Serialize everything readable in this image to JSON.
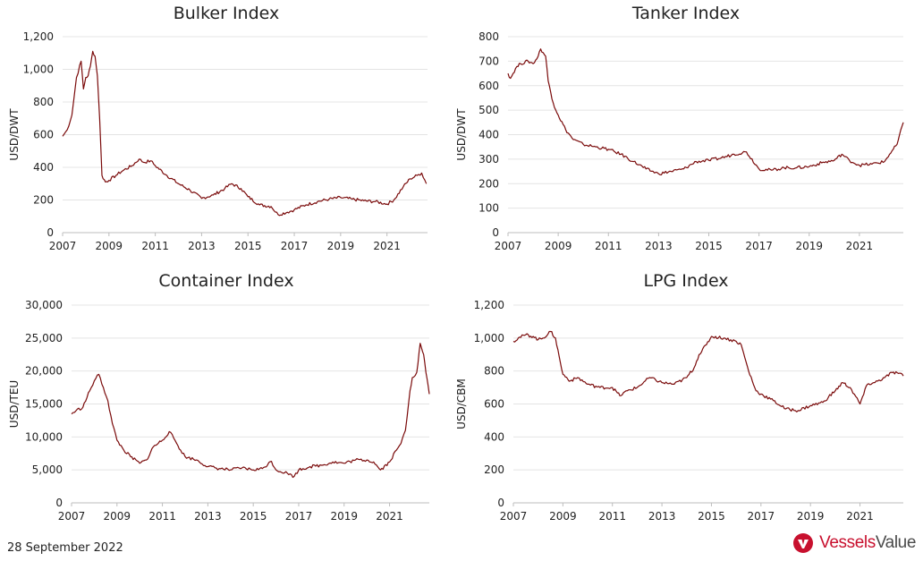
{
  "colors": {
    "series": "#7a0a0a",
    "brand": "#c8102e",
    "brand_dark": "#4a4a4a"
  },
  "footer": {
    "date": "28 September 2022"
  },
  "brand": {
    "name_a": "Vessels",
    "name_b": "Value",
    "icon": "vessels-value-logo-icon"
  },
  "chart_data": [
    {
      "id": "bulker",
      "type": "line",
      "title": "Bulker Index",
      "xlabel": "",
      "ylabel": "USD/DWT",
      "xlim": [
        2007,
        2022.75
      ],
      "ylim": [
        0,
        1200
      ],
      "xticks": [
        "2007",
        "2009",
        "2011",
        "2013",
        "2015",
        "2017",
        "2019",
        "2021"
      ],
      "yticks": [
        "0",
        "200",
        "400",
        "600",
        "800",
        "1,000",
        "1,200"
      ],
      "grid": true,
      "series": [
        {
          "x": [
            2007.0,
            2007.2,
            2007.4,
            2007.6,
            2007.8,
            2007.9,
            2008.0,
            2008.1,
            2008.2,
            2008.3,
            2008.4,
            2008.5,
            2008.6,
            2008.7,
            2008.85,
            2009.0,
            2009.3,
            2009.6,
            2010.0,
            2010.3,
            2010.5,
            2010.8,
            2011.0,
            2011.5,
            2012.0,
            2012.5,
            2013.0,
            2013.5,
            2014.0,
            2014.3,
            2014.7,
            2015.0,
            2015.5,
            2016.0,
            2016.3,
            2016.7,
            2017.0,
            2017.5,
            2018.0,
            2018.5,
            2019.0,
            2019.5,
            2020.0,
            2020.5,
            2021.0,
            2021.3,
            2021.7,
            2022.0,
            2022.3,
            2022.5,
            2022.7
          ],
          "y": [
            590,
            630,
            720,
            950,
            1050,
            880,
            950,
            960,
            1020,
            1110,
            1080,
            960,
            700,
            350,
            310,
            320,
            350,
            380,
            410,
            450,
            430,
            440,
            410,
            350,
            300,
            260,
            210,
            230,
            270,
            300,
            270,
            220,
            170,
            160,
            110,
            125,
            140,
            170,
            190,
            205,
            215,
            205,
            195,
            190,
            175,
            200,
            280,
            330,
            350,
            365,
            300
          ]
        }
      ]
    },
    {
      "id": "tanker",
      "type": "line",
      "title": "Tanker Index",
      "xlabel": "",
      "ylabel": "USD/DWT",
      "xlim": [
        2007,
        2022.75
      ],
      "ylim": [
        0,
        800
      ],
      "xticks": [
        "2007",
        "2009",
        "2011",
        "2013",
        "2015",
        "2017",
        "2019",
        "2021"
      ],
      "yticks": [
        "0",
        "100",
        "200",
        "300",
        "400",
        "500",
        "600",
        "700",
        "800"
      ],
      "grid": true,
      "series": [
        {
          "x": [
            2007.0,
            2007.1,
            2007.3,
            2007.5,
            2007.8,
            2008.0,
            2008.2,
            2008.3,
            2008.5,
            2008.6,
            2008.8,
            2009.0,
            2009.3,
            2009.6,
            2010.0,
            2010.5,
            2011.0,
            2011.5,
            2012.0,
            2012.5,
            2013.0,
            2013.5,
            2014.0,
            2014.5,
            2015.0,
            2015.5,
            2016.0,
            2016.5,
            2017.0,
            2017.5,
            2018.0,
            2018.5,
            2019.0,
            2019.5,
            2020.0,
            2020.3,
            2020.6,
            2021.0,
            2021.5,
            2022.0,
            2022.2,
            2022.5,
            2022.75
          ],
          "y": [
            650,
            630,
            670,
            690,
            700,
            690,
            720,
            750,
            720,
            620,
            530,
            480,
            420,
            380,
            360,
            350,
            340,
            320,
            290,
            260,
            240,
            250,
            260,
            290,
            295,
            305,
            320,
            330,
            260,
            255,
            265,
            265,
            270,
            285,
            295,
            320,
            295,
            275,
            280,
            290,
            320,
            360,
            450
          ]
        }
      ]
    },
    {
      "id": "container",
      "type": "line",
      "title": "Container Index",
      "xlabel": "",
      "ylabel": "USD/TEU",
      "xlim": [
        2007,
        2022.75
      ],
      "ylim": [
        0,
        30000
      ],
      "xticks": [
        "2007",
        "2009",
        "2011",
        "2013",
        "2015",
        "2017",
        "2019",
        "2021"
      ],
      "yticks": [
        "0",
        "5,000",
        "10,000",
        "15,000",
        "20,000",
        "25,000",
        "30,000"
      ],
      "grid": true,
      "series": [
        {
          "x": [
            2007.0,
            2007.2,
            2007.5,
            2007.8,
            2008.0,
            2008.2,
            2008.4,
            2008.6,
            2008.8,
            2009.0,
            2009.3,
            2009.6,
            2010.0,
            2010.3,
            2010.6,
            2011.0,
            2011.3,
            2011.5,
            2011.8,
            2012.0,
            2012.5,
            2013.0,
            2013.5,
            2014.0,
            2014.5,
            2015.0,
            2015.4,
            2015.8,
            2016.0,
            2016.5,
            2016.8,
            2017.0,
            2017.5,
            2018.0,
            2018.5,
            2019.0,
            2019.5,
            2020.0,
            2020.3,
            2020.6,
            2021.0,
            2021.3,
            2021.5,
            2021.7,
            2021.9,
            2022.0,
            2022.2,
            2022.35,
            2022.5,
            2022.6,
            2022.75
          ],
          "y": [
            13500,
            14000,
            14500,
            17000,
            18500,
            19500,
            17500,
            15500,
            12000,
            9500,
            8000,
            7000,
            6000,
            6500,
            8500,
            9500,
            10800,
            9800,
            8000,
            7000,
            6500,
            5500,
            5200,
            5000,
            5300,
            5000,
            5200,
            6300,
            5000,
            4500,
            4000,
            5000,
            5500,
            5700,
            6200,
            6000,
            6500,
            6500,
            6200,
            5000,
            6200,
            8000,
            9000,
            11000,
            17000,
            19000,
            19800,
            24200,
            22500,
            19800,
            16500
          ]
        }
      ]
    },
    {
      "id": "lpg",
      "type": "line",
      "title": "LPG Index",
      "xlabel": "",
      "ylabel": "USD/CBM",
      "xlim": [
        2007,
        2022.75
      ],
      "ylim": [
        0,
        1200
      ],
      "xticks": [
        "2007",
        "2009",
        "2011",
        "2013",
        "2015",
        "2017",
        "2019",
        "2021"
      ],
      "yticks": [
        "0",
        "200",
        "400",
        "600",
        "800",
        "1,000",
        "1,200"
      ],
      "grid": true,
      "series": [
        {
          "x": [
            2007.0,
            2007.2,
            2007.5,
            2007.8,
            2008.0,
            2008.2,
            2008.5,
            2008.7,
            2008.9,
            2009.0,
            2009.3,
            2009.6,
            2010.0,
            2010.5,
            2011.0,
            2011.3,
            2011.6,
            2012.0,
            2012.5,
            2013.0,
            2013.5,
            2014.0,
            2014.3,
            2014.5,
            2014.8,
            2015.0,
            2015.5,
            2016.0,
            2016.2,
            2016.5,
            2016.8,
            2017.0,
            2017.5,
            2018.0,
            2018.5,
            2019.0,
            2019.5,
            2020.0,
            2020.3,
            2020.6,
            2021.0,
            2021.3,
            2021.6,
            2022.0,
            2022.3,
            2022.5,
            2022.75
          ],
          "y": [
            980,
            1000,
            1020,
            1010,
            990,
            1000,
            1040,
            1000,
            850,
            780,
            740,
            760,
            720,
            700,
            700,
            650,
            680,
            700,
            760,
            730,
            720,
            760,
            820,
            900,
            960,
            1010,
            1000,
            980,
            960,
            800,
            680,
            660,
            620,
            570,
            560,
            590,
            610,
            680,
            730,
            700,
            600,
            720,
            730,
            760,
            790,
            790,
            770
          ]
        }
      ]
    }
  ]
}
